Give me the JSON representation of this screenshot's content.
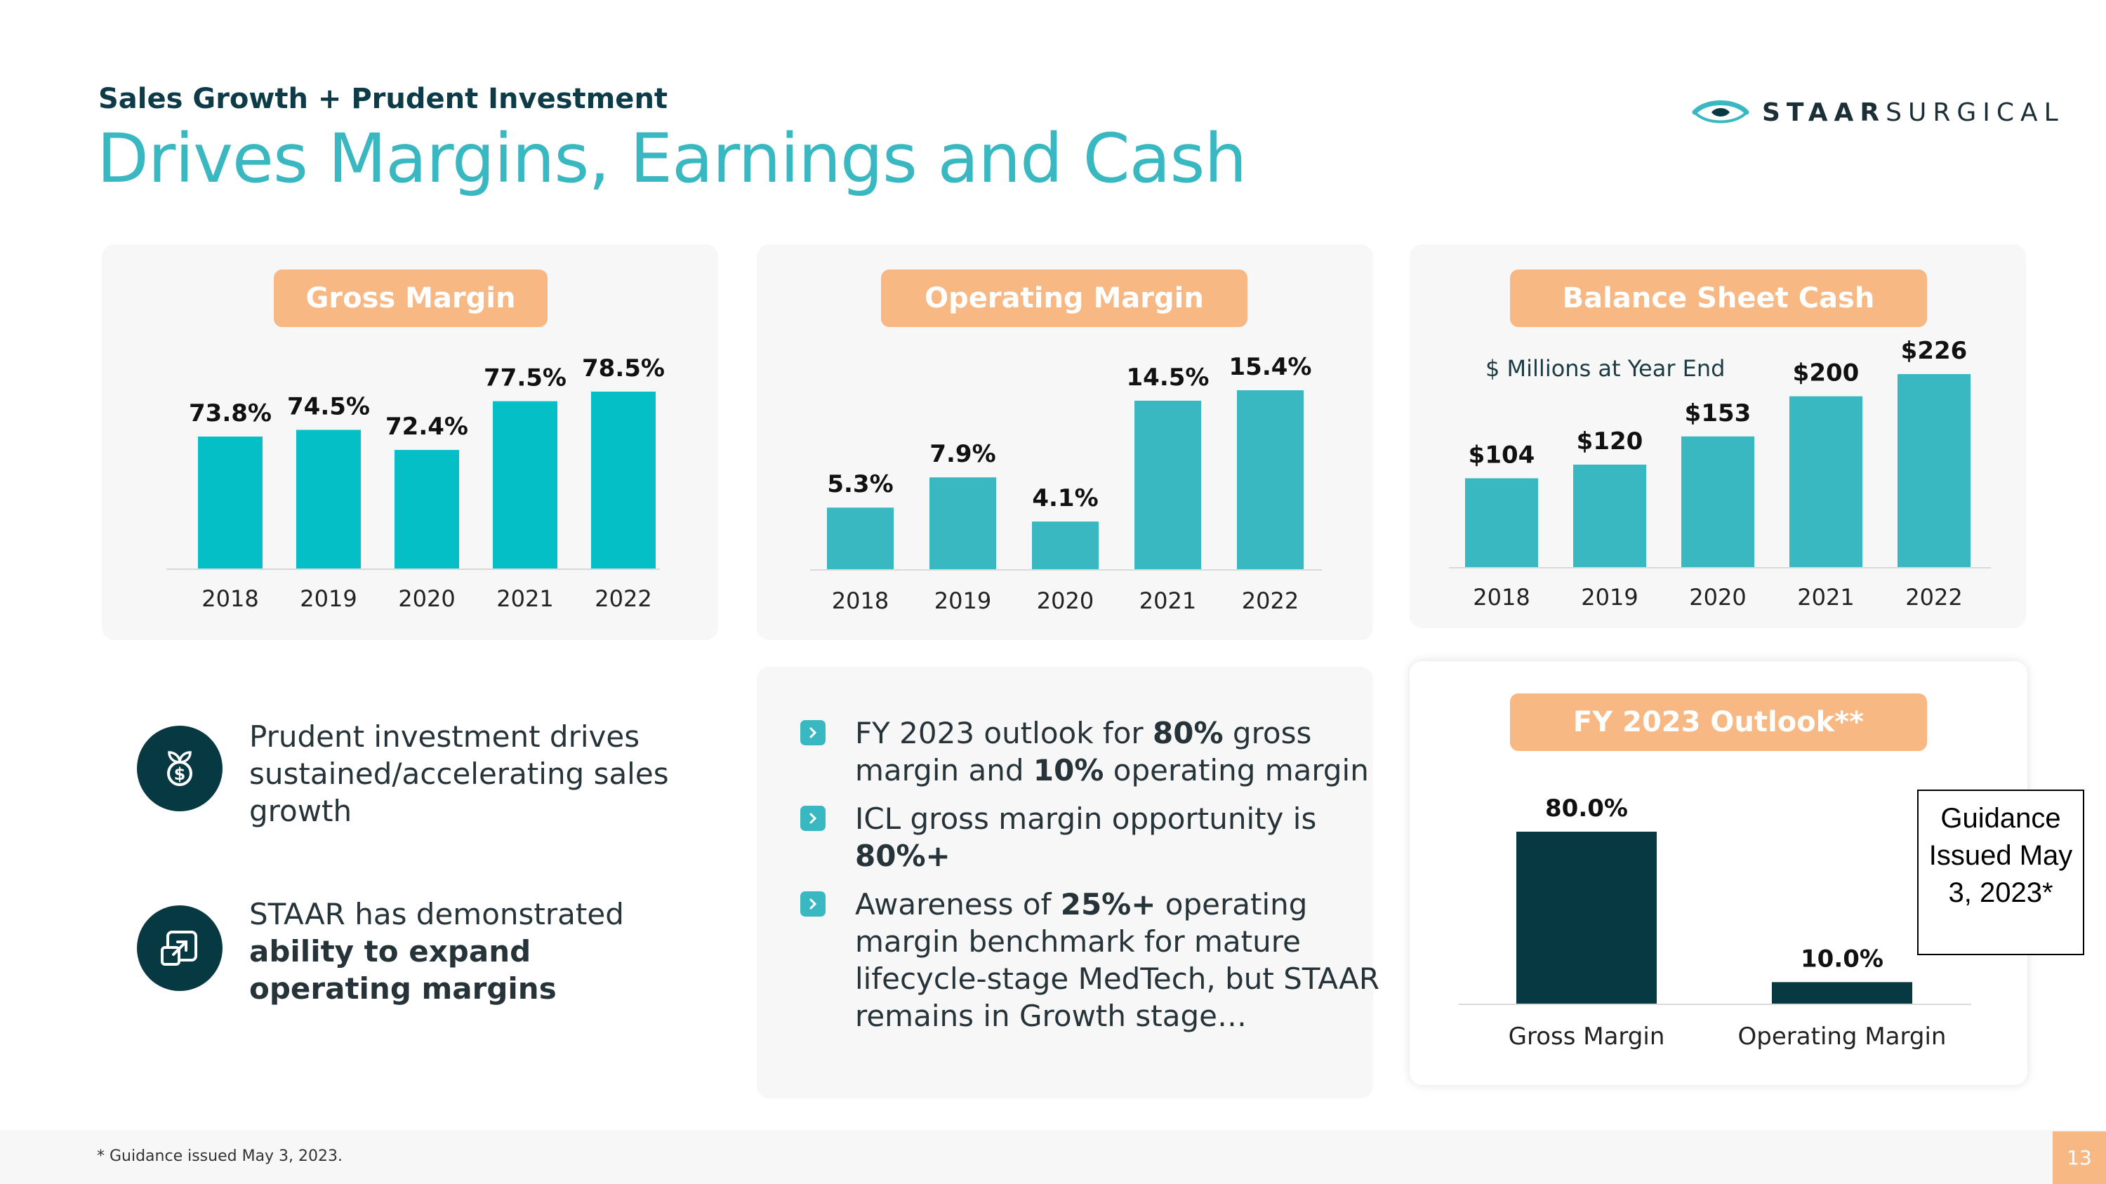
{
  "header": {
    "eyebrow": "Sales Growth + Prudent Investment",
    "title": "Drives Margins, Earnings and Cash",
    "logo_bold": "STAAR",
    "logo_light": "SURGICAL"
  },
  "colors": {
    "teal": "#3ab8c1",
    "teal_bright": "#05bfc7",
    "dark_teal": "#073942",
    "orange": "#f7b883"
  },
  "chart_data": [
    {
      "id": "gross",
      "type": "bar",
      "title": "Gross Margin",
      "categories": [
        "2018",
        "2019",
        "2020",
        "2021",
        "2022"
      ],
      "values": [
        73.8,
        74.5,
        72.4,
        77.5,
        78.5
      ],
      "labels": [
        "73.8%",
        "74.5%",
        "72.4%",
        "77.5%",
        "78.5%"
      ],
      "ylim": [
        60,
        80
      ],
      "unit": "%"
    },
    {
      "id": "operating",
      "type": "bar",
      "title": "Operating Margin",
      "categories": [
        "2018",
        "2019",
        "2020",
        "2021",
        "2022"
      ],
      "values": [
        5.3,
        7.9,
        4.1,
        14.5,
        15.4
      ],
      "labels": [
        "5.3%",
        "7.9%",
        "4.1%",
        "14.5%",
        "15.4%"
      ],
      "ylim": [
        0,
        18
      ],
      "unit": "%"
    },
    {
      "id": "cash",
      "type": "bar",
      "title": "Balance Sheet Cash",
      "subtitle": "$ Millions at Year End",
      "categories": [
        "2018",
        "2019",
        "2020",
        "2021",
        "2022"
      ],
      "values": [
        104,
        120,
        153,
        200,
        226
      ],
      "labels": [
        "$104",
        "$120",
        "$153",
        "$200",
        "$226"
      ],
      "ylim": [
        0,
        250
      ],
      "unit": "$M"
    },
    {
      "id": "outlook",
      "type": "bar",
      "title": "FY 2023 Outlook**",
      "categories": [
        "Gross Margin",
        "Operating Margin"
      ],
      "values": [
        80.0,
        10.0
      ],
      "labels": [
        "80.0%",
        "10.0%"
      ],
      "ylim": [
        0,
        100
      ],
      "unit": "%"
    }
  ],
  "features": [
    {
      "icon": "plant-dollar-icon",
      "text": "Prudent investment drives sustained/accelerating sales growth"
    },
    {
      "icon": "expand-arrow-icon",
      "text_plain": "STAAR has demonstrated",
      "text_bold": "ability to expand operating margins"
    }
  ],
  "bullets": [
    {
      "a": "FY 2023 outlook for ",
      "b": "80%",
      "c": " gross margin and ",
      "d": "10%",
      "e": " operating margin"
    },
    {
      "a": "ICL gross margin opportunity is ",
      "b": "80%+"
    },
    {
      "a": "Awareness of ",
      "b": "25%+",
      "c": " operating margin benchmark for mature lifecycle-stage MedTech, but STAAR remains in Growth stage…"
    }
  ],
  "guidance_box": "Guidance Issued May 3, 2023*",
  "footnote": "* Guidance issued May 3, 2023.",
  "page_number": "13"
}
